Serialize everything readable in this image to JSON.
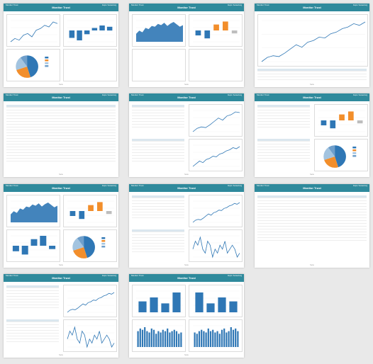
{
  "report": {
    "title": "Monitor Trust",
    "brand": "Monitor Trust",
    "meta": "Depot / Auswertung",
    "footer": "Seite"
  },
  "pages": [
    {
      "id": "p1"
    },
    {
      "id": "p2"
    },
    {
      "id": "p3"
    },
    {
      "id": "p4"
    },
    {
      "id": "p5"
    },
    {
      "id": "p6"
    },
    {
      "id": "p7"
    },
    {
      "id": "p8"
    },
    {
      "id": "p9"
    },
    {
      "id": "p10"
    },
    {
      "id": "p11"
    }
  ],
  "colors": {
    "header": "#2f8a9c",
    "bar": "#2f77b5",
    "accent": "#f28e2b",
    "grey": "#bdbdbd"
  },
  "chart_data": [
    {
      "type": "line",
      "page": "p1",
      "series": [
        {
          "values": [
            10,
            12,
            11,
            14,
            15,
            13,
            17,
            18,
            20,
            19,
            22,
            21
          ]
        }
      ]
    },
    {
      "type": "bar",
      "page": "p1",
      "values": [
        -6,
        -8,
        -3,
        2,
        4,
        3
      ]
    },
    {
      "type": "pie",
      "page": "p1",
      "values": [
        45,
        25,
        20,
        10
      ]
    },
    {
      "type": "area",
      "page": "p2",
      "values": [
        20,
        28,
        24,
        35,
        32,
        40,
        38,
        45,
        42,
        48,
        40,
        46,
        50,
        44,
        38,
        42
      ]
    },
    {
      "type": "bar",
      "page": "p2",
      "values": [
        -5,
        -8,
        6,
        9,
        -3
      ]
    },
    {
      "type": "line",
      "page": "p3",
      "series": [
        {
          "values": [
            5,
            10,
            12,
            11,
            15,
            20,
            25,
            22,
            28,
            30,
            34,
            33,
            38,
            40,
            44,
            46,
            50,
            48,
            52
          ]
        }
      ]
    },
    {
      "type": "bar",
      "page": "p10",
      "values": [
        22,
        30,
        18,
        40
      ]
    },
    {
      "type": "bar",
      "page": "p11",
      "values": [
        12,
        14,
        13,
        15,
        12,
        11,
        14,
        13,
        10,
        12,
        11,
        13,
        12,
        14,
        11,
        12,
        13,
        12,
        10,
        11
      ]
    }
  ]
}
